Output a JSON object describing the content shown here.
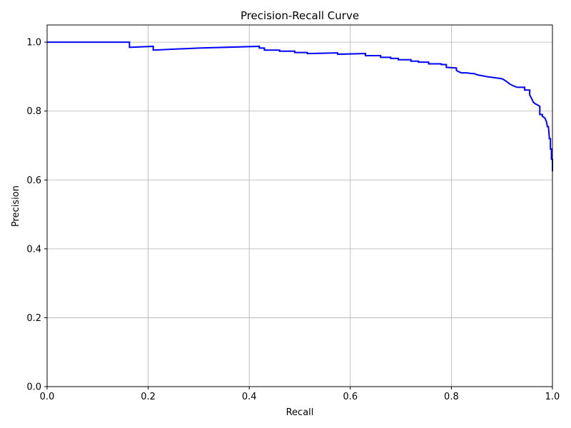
{
  "chart_data": {
    "type": "line",
    "title": "Precision-Recall Curve",
    "xlabel": "Recall",
    "ylabel": "Precision",
    "xlim": [
      0.0,
      1.0
    ],
    "ylim": [
      0.0,
      1.05
    ],
    "x_ticks": [
      0.0,
      0.2,
      0.4,
      0.6,
      0.8,
      1.0
    ],
    "y_ticks": [
      0.0,
      0.2,
      0.4,
      0.6,
      0.8,
      1.0
    ],
    "x_tick_labels": [
      "0.0",
      "0.2",
      "0.4",
      "0.6",
      "0.8",
      "1.0"
    ],
    "y_tick_labels": [
      "0.0",
      "0.2",
      "0.4",
      "0.6",
      "0.8",
      "1.0"
    ],
    "grid": true,
    "legend": "none",
    "series": [
      {
        "color": "#0000ff",
        "x": [
          0.0,
          0.163,
          0.163,
          0.21,
          0.21,
          0.3,
          0.42,
          0.42,
          0.43,
          0.43,
          0.46,
          0.46,
          0.49,
          0.49,
          0.515,
          0.515,
          0.575,
          0.575,
          0.63,
          0.63,
          0.66,
          0.66,
          0.68,
          0.68,
          0.695,
          0.695,
          0.72,
          0.72,
          0.735,
          0.735,
          0.755,
          0.755,
          0.78,
          0.78,
          0.79,
          0.79,
          0.81,
          0.81,
          0.815,
          0.82,
          0.83,
          0.84,
          0.845,
          0.85,
          0.855,
          0.86,
          0.87,
          0.88,
          0.89,
          0.9,
          0.905,
          0.91,
          0.915,
          0.92,
          0.93,
          0.945,
          0.945,
          0.955,
          0.955,
          0.96,
          0.962,
          0.965,
          0.97,
          0.975,
          0.975,
          0.98,
          0.98,
          0.985,
          0.988,
          0.99,
          0.992,
          0.994,
          0.996,
          0.996,
          0.998,
          0.998,
          1.0,
          1.0
        ],
        "y": [
          1.0,
          1.0,
          0.985,
          0.988,
          0.977,
          0.983,
          0.988,
          0.983,
          0.983,
          0.977,
          0.977,
          0.974,
          0.974,
          0.97,
          0.97,
          0.967,
          0.969,
          0.965,
          0.967,
          0.961,
          0.961,
          0.956,
          0.956,
          0.953,
          0.953,
          0.949,
          0.949,
          0.945,
          0.945,
          0.942,
          0.942,
          0.937,
          0.937,
          0.935,
          0.935,
          0.927,
          0.925,
          0.918,
          0.914,
          0.911,
          0.911,
          0.909,
          0.909,
          0.906,
          0.904,
          0.903,
          0.9,
          0.898,
          0.896,
          0.894,
          0.89,
          0.885,
          0.879,
          0.875,
          0.869,
          0.869,
          0.861,
          0.861,
          0.847,
          0.833,
          0.826,
          0.822,
          0.818,
          0.814,
          0.79,
          0.79,
          0.785,
          0.78,
          0.77,
          0.755,
          0.755,
          0.72,
          0.72,
          0.69,
          0.69,
          0.66,
          0.66,
          0.625
        ]
      }
    ]
  }
}
